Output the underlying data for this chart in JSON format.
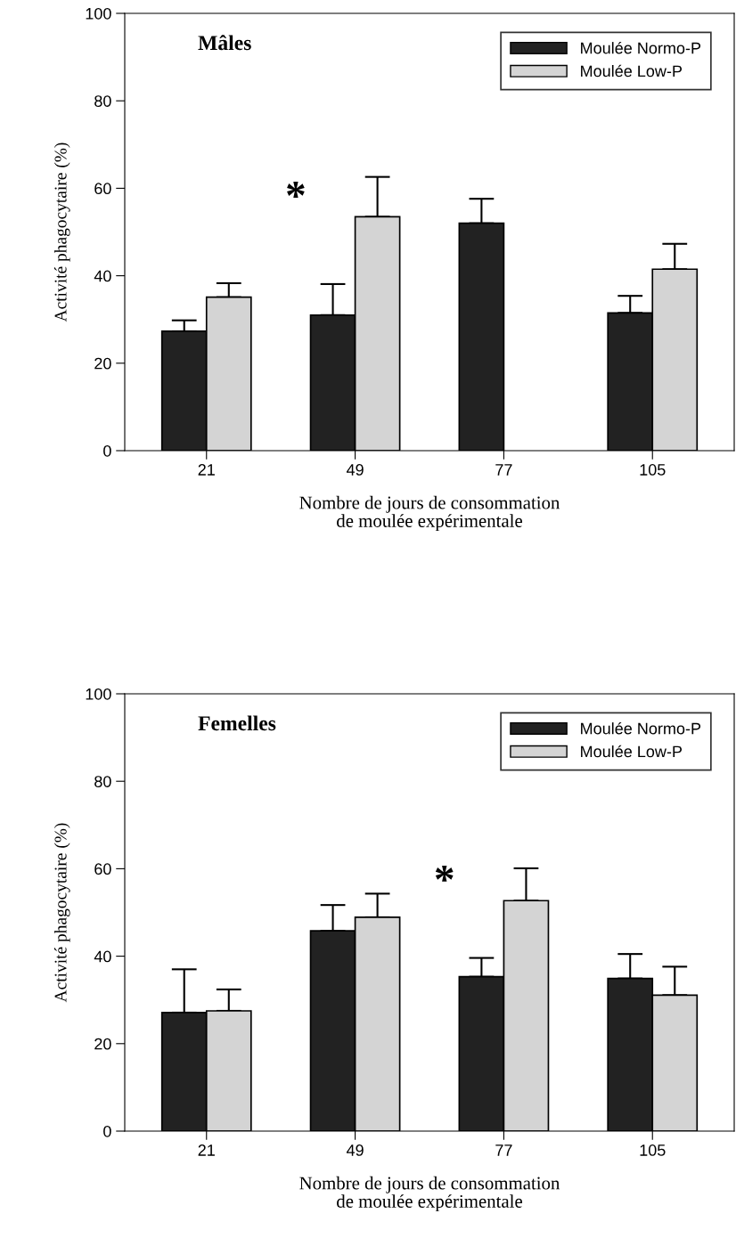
{
  "chart_data": [
    {
      "type": "bar",
      "title": "Mâles",
      "categories": [
        "21",
        "49",
        "77",
        "105"
      ],
      "xlabel": "Nombre de jours de consommation\nde moulée expérimentale",
      "ylabel": "Activité phagocytaire (%)",
      "ylim": [
        0,
        100
      ],
      "yticks": [
        0,
        20,
        40,
        60,
        80,
        100
      ],
      "grid": false,
      "legend": "top right",
      "series": [
        {
          "name": "Moulée Normo-P",
          "color": "#222222",
          "values": [
            27.3,
            31.0,
            52.0,
            31.5
          ],
          "errors": [
            [
              27.3,
              29.8
            ],
            [
              31.0,
              38.1
            ],
            [
              52.0,
              57.6
            ],
            [
              31.5,
              35.4
            ]
          ]
        },
        {
          "name": "Moulée Low-P",
          "color": "#d4d4d4",
          "values": [
            35.1,
            53.5,
            null,
            41.5
          ],
          "errors": [
            [
              35.1,
              38.3
            ],
            [
              53.5,
              62.6
            ],
            null,
            [
              41.5,
              47.3
            ]
          ]
        }
      ],
      "annotations": [
        {
          "text": "*",
          "x": "49",
          "y": 53.5
        }
      ]
    },
    {
      "type": "bar",
      "title": "Femelles",
      "categories": [
        "21",
        "49",
        "77",
        "105"
      ],
      "xlabel": "Nombre de jours de consommation\nde moulée expérimentale",
      "ylabel": "Activité phagocytaire (%)",
      "ylim": [
        0,
        100
      ],
      "yticks": [
        0,
        20,
        40,
        60,
        80,
        100
      ],
      "grid": false,
      "legend": "top right",
      "series": [
        {
          "name": "Moulée Normo-P",
          "color": "#222222",
          "values": [
            27.1,
            45.8,
            35.3,
            34.9
          ],
          "errors": [
            [
              27.1,
              37.0
            ],
            [
              45.8,
              51.7
            ],
            [
              35.3,
              39.6
            ],
            [
              34.9,
              40.5
            ]
          ]
        },
        {
          "name": "Moulée Low-P",
          "color": "#d4d4d4",
          "values": [
            27.5,
            48.9,
            52.7,
            31.1
          ],
          "errors": [
            [
              27.5,
              32.4
            ],
            [
              48.9,
              54.3
            ],
            [
              52.7,
              60.1
            ],
            [
              31.1,
              37.6
            ]
          ]
        }
      ],
      "annotations": [
        {
          "text": "*",
          "x": "77",
          "y": 52.7
        }
      ]
    }
  ]
}
